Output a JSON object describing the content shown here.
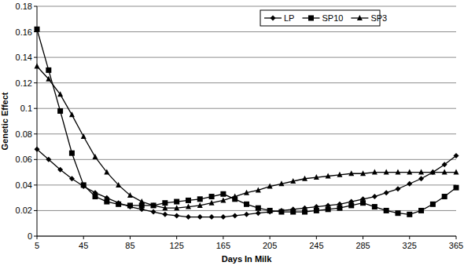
{
  "chart_data": {
    "type": "line",
    "x_label": "Days In Milk",
    "y_label": "Genetic Effect",
    "x": [
      5,
      15,
      25,
      35,
      45,
      55,
      65,
      75,
      85,
      95,
      105,
      115,
      125,
      135,
      145,
      155,
      165,
      175,
      185,
      195,
      205,
      215,
      225,
      235,
      245,
      255,
      265,
      275,
      285,
      295,
      305,
      315,
      325,
      335,
      345,
      355,
      365
    ],
    "series": [
      {
        "name": "LP",
        "color": "#000000",
        "marker": "diamond",
        "values": [
          0.068,
          0.06,
          0.052,
          0.045,
          0.039,
          0.034,
          0.03,
          0.026,
          0.023,
          0.021,
          0.019,
          0.017,
          0.016,
          0.015,
          0.015,
          0.015,
          0.015,
          0.016,
          0.017,
          0.018,
          0.019,
          0.02,
          0.021,
          0.022,
          0.023,
          0.024,
          0.025,
          0.027,
          0.029,
          0.031,
          0.034,
          0.037,
          0.041,
          0.045,
          0.05,
          0.056,
          0.063
        ]
      },
      {
        "name": "SP10",
        "color": "#000000",
        "marker": "square",
        "values": [
          0.162,
          0.13,
          0.098,
          0.065,
          0.04,
          0.031,
          0.027,
          0.025,
          0.024,
          0.024,
          0.024,
          0.026,
          0.027,
          0.028,
          0.029,
          0.031,
          0.033,
          0.029,
          0.025,
          0.022,
          0.02,
          0.019,
          0.019,
          0.019,
          0.02,
          0.021,
          0.022,
          0.024,
          0.026,
          0.023,
          0.02,
          0.018,
          0.017,
          0.02,
          0.025,
          0.031,
          0.038
        ]
      },
      {
        "name": "SP3",
        "color": "#000000",
        "marker": "triangle",
        "values": [
          0.133,
          0.123,
          0.111,
          0.095,
          0.078,
          0.062,
          0.05,
          0.04,
          0.032,
          0.027,
          0.024,
          0.022,
          0.022,
          0.023,
          0.024,
          0.026,
          0.028,
          0.031,
          0.034,
          0.036,
          0.039,
          0.041,
          0.043,
          0.045,
          0.046,
          0.047,
          0.048,
          0.049,
          0.049,
          0.05,
          0.05,
          0.05,
          0.05,
          0.05,
          0.05,
          0.05,
          0.05
        ]
      }
    ],
    "xlim": [
      5,
      365
    ],
    "xticks": [
      5,
      45,
      85,
      125,
      165,
      205,
      245,
      285,
      325,
      365
    ],
    "ylim": [
      0,
      0.18
    ],
    "yticks": [
      0,
      0.02,
      0.04,
      0.06,
      0.08,
      0.1,
      0.12,
      0.14,
      0.16,
      0.18
    ],
    "grid": true,
    "legend": "top-right"
  }
}
